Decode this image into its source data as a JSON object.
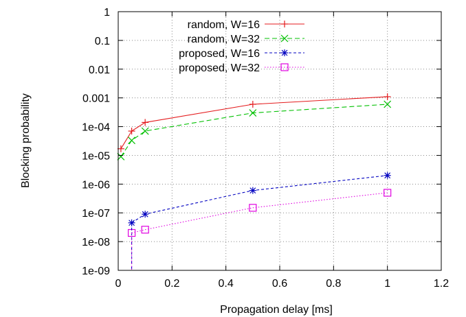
{
  "chart_data": {
    "type": "line",
    "title": "",
    "xlabel": "Propagation delay [ms]",
    "ylabel": "Blocking probability",
    "xlim": [
      0,
      1.2
    ],
    "ylim": [
      1e-09,
      1
    ],
    "yscale": "log",
    "grid": true,
    "legend_position": "top-right",
    "x_ticks": [
      "0",
      "0.2",
      "0.4",
      "0.6",
      "0.8",
      "1",
      "1.2"
    ],
    "y_ticks": [
      "1e-09",
      "1e-08",
      "1e-07",
      "1e-06",
      "1e-05",
      "1e-04",
      "0.001",
      "0.01",
      "0.1",
      "1"
    ],
    "series": [
      {
        "name": "random, W=16",
        "color": "#e41a1c",
        "marker": "plus",
        "dash": "solid",
        "x": [
          0.01,
          0.05,
          0.1,
          0.5,
          1.0
        ],
        "y": [
          1.7e-05,
          7e-05,
          0.00014,
          0.0006,
          0.0011
        ]
      },
      {
        "name": "random, W=32",
        "color": "#00c000",
        "marker": "x",
        "dash": "long",
        "x": [
          0.01,
          0.05,
          0.1,
          0.5,
          1.0
        ],
        "y": [
          9e-06,
          3.3e-05,
          7e-05,
          0.0003,
          0.0006
        ]
      },
      {
        "name": "proposed, W=16",
        "color": "#0000c0",
        "marker": "star",
        "dash": "short",
        "x": [
          0.05,
          0.1,
          0.5,
          1.0
        ],
        "y": [
          4.5e-08,
          9e-08,
          6e-07,
          2e-06
        ]
      },
      {
        "name": "proposed, W=32",
        "color": "#e000e0",
        "marker": "square",
        "dash": "dot",
        "x": [
          0.05,
          0.1,
          0.5,
          1.0
        ],
        "y": [
          2e-08,
          2.6e-08,
          1.5e-07,
          5e-07
        ]
      }
    ]
  }
}
